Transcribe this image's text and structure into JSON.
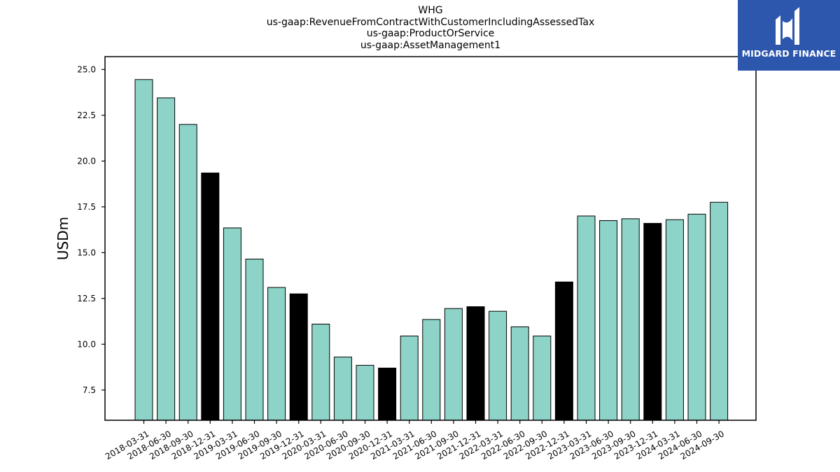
{
  "title_lines": [
    "WHG",
    "us-gaap:RevenueFromContractWithCustomerIncludingAssessedTax",
    "us-gaap:ProductOrService",
    "us-gaap:AssetManagement1"
  ],
  "logo": {
    "text": "MIDGARD FINANCE",
    "background": "#2c57ad"
  },
  "colors": {
    "bar": "#8dd3c7",
    "bar_year_end": "#000000",
    "edge": "#000000"
  },
  "chart_data": {
    "type": "bar",
    "title": "WHG\nus-gaap:RevenueFromContractWithCustomerIncludingAssessedTax\nus-gaap:ProductOrService\nus-gaap:AssetManagement1",
    "xlabel": "",
    "ylabel": "USDm",
    "ylim": [
      5.85,
      25.7
    ],
    "yticks": [
      7.5,
      10.0,
      12.5,
      15.0,
      17.5,
      20.0,
      22.5,
      25.0
    ],
    "ytick_labels": [
      "7.5",
      "10.0",
      "12.5",
      "15.0",
      "17.5",
      "20.0",
      "22.5",
      "25.0"
    ],
    "grid": false,
    "categories": [
      "2018-03-31",
      "2018-06-30",
      "2018-09-30",
      "2018-12-31",
      "2019-03-31",
      "2019-06-30",
      "2019-09-30",
      "2019-12-31",
      "2020-03-31",
      "2020-06-30",
      "2020-09-30",
      "2020-12-31",
      "2021-03-31",
      "2021-06-30",
      "2021-09-30",
      "2021-12-31",
      "2022-03-31",
      "2022-06-30",
      "2022-09-30",
      "2022-12-31",
      "2023-03-31",
      "2023-06-30",
      "2023-09-30",
      "2023-12-31",
      "2024-03-31",
      "2024-06-30",
      "2024-09-30"
    ],
    "values": [
      24.45,
      23.45,
      22.0,
      19.35,
      16.35,
      14.65,
      13.1,
      12.75,
      11.1,
      9.3,
      8.85,
      8.7,
      10.45,
      11.35,
      11.95,
      12.05,
      11.8,
      10.95,
      10.45,
      13.4,
      17.0,
      16.75,
      16.85,
      16.6,
      16.8,
      17.1,
      17.75
    ],
    "year_end": [
      false,
      false,
      false,
      true,
      false,
      false,
      false,
      true,
      false,
      false,
      false,
      true,
      false,
      false,
      false,
      true,
      false,
      false,
      false,
      true,
      false,
      false,
      false,
      true,
      false,
      false,
      false
    ]
  }
}
